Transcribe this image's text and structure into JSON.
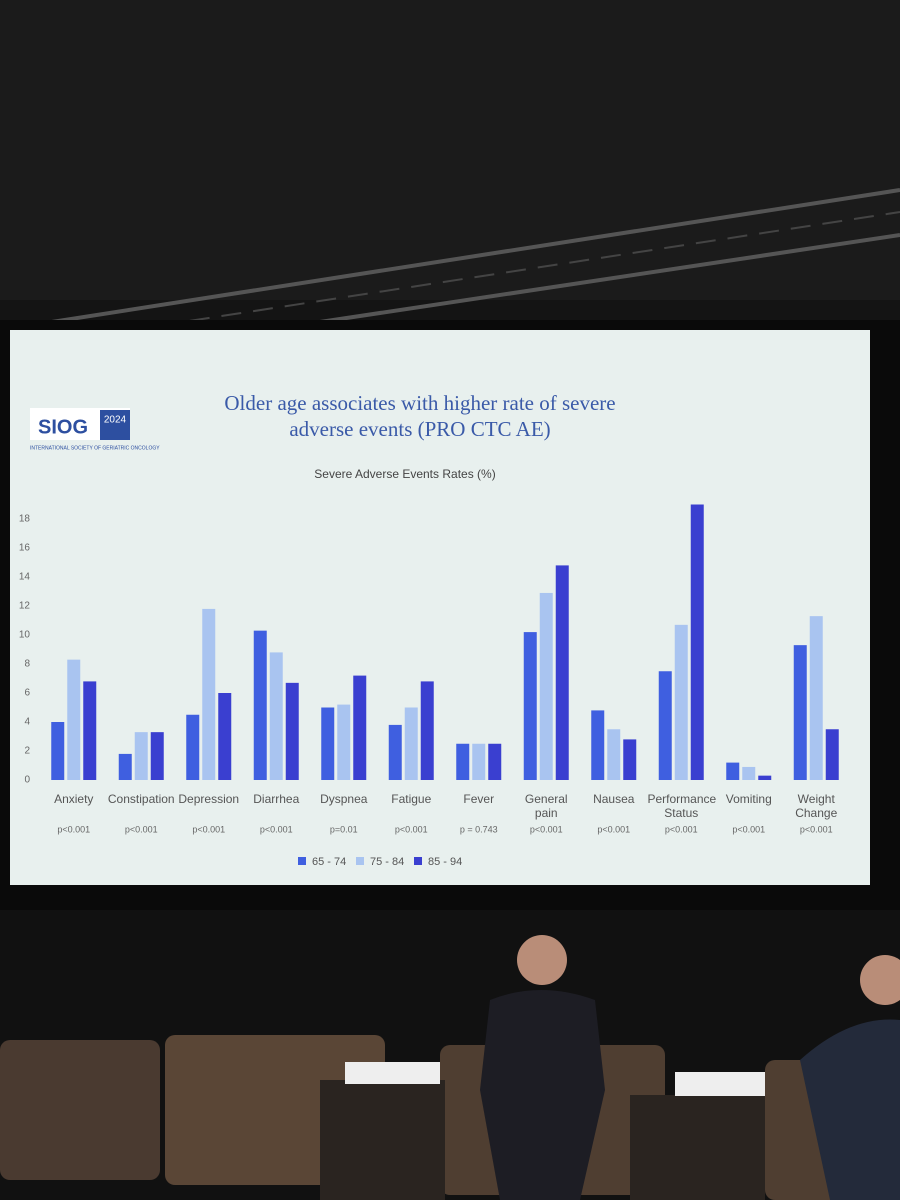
{
  "logo": {
    "name": "SIOG",
    "year": "2024",
    "society": "INTERNATIONAL SOCIETY OF GERIATRIC ONCOLOGY"
  },
  "chart_data": {
    "type": "bar",
    "title": "Older age associates with higher rate of severe adverse events (PRO CTC AE)",
    "subtitle": "Severe Adverse Events Rates (%)",
    "categories": [
      "Anxiety",
      "Constipation",
      "Depression",
      "Diarrhea",
      "Dyspnea",
      "Fatigue",
      "Fever",
      "General pain",
      "Nausea",
      "Performance Status",
      "Vomiting",
      "Weight Change"
    ],
    "p_values": [
      "p<0.001",
      "p<0.001",
      "p<0.001",
      "p<0.001",
      "p=0.01",
      "p<0.001",
      "p = 0.743",
      "p<0.001",
      "p<0.001",
      "p<0.001",
      "p<0.001",
      "p<0.001"
    ],
    "series": [
      {
        "name": "65 - 74",
        "color": "#3f5fe0",
        "values": [
          4,
          1.8,
          4.5,
          10.3,
          5,
          3.8,
          2.5,
          10.2,
          4.8,
          7.5,
          1.2,
          9.3
        ]
      },
      {
        "name": "75 - 84",
        "color": "#a9c4f0",
        "values": [
          8.3,
          3.3,
          11.8,
          8.8,
          5.2,
          5,
          2.5,
          12.9,
          3.5,
          10.7,
          0.9,
          11.3
        ]
      },
      {
        "name": "85 - 94",
        "color": "#3a3fd0",
        "values": [
          6.8,
          3.3,
          6,
          6.7,
          7.2,
          6.8,
          2.5,
          14.8,
          2.8,
          19,
          0.3,
          3.5
        ]
      }
    ],
    "ylim": [
      0,
      20
    ],
    "yticks": [
      0,
      2,
      4,
      6,
      8,
      10,
      12,
      14,
      16,
      18
    ],
    "grid": false,
    "legend": "bottom"
  }
}
